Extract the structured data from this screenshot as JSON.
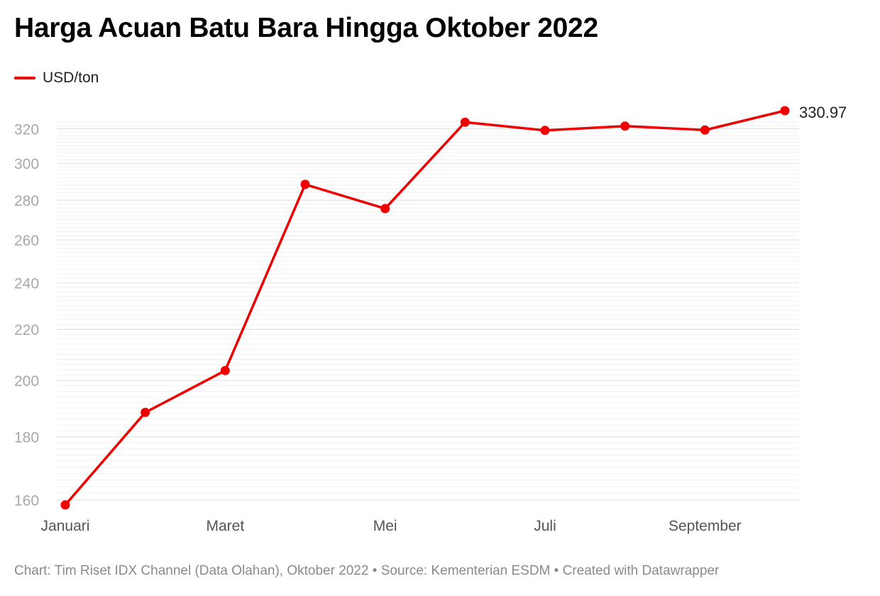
{
  "title": "Harga Acuan Batu Bara Hingga Oktober 2022",
  "colors": {
    "line": "#ee0000",
    "grid": "#e3e3e3",
    "tick_text": "#a8a8a8",
    "axis_text": "#555555"
  },
  "footer": "Chart: Tim Riset IDX Channel (Data Olahan), Oktober 2022 • Source: Kementerian ESDM • Created with Datawrapper",
  "chart_data": {
    "type": "line",
    "title": "Harga Acuan Batu Bara Hingga Oktober 2022",
    "xlabel": "",
    "ylabel": "",
    "y_scale": "log",
    "ylim": [
      158,
      330.97
    ],
    "y_ticks": [
      160,
      180,
      200,
      220,
      240,
      260,
      280,
      300,
      320
    ],
    "x_tick_labels": [
      {
        "index": 0,
        "label": "Januari"
      },
      {
        "index": 2,
        "label": "Maret"
      },
      {
        "index": 4,
        "label": "Mei"
      },
      {
        "index": 6,
        "label": "Juli"
      },
      {
        "index": 8,
        "label": "September"
      }
    ],
    "legend": "top-left",
    "grid": true,
    "series": [
      {
        "name": "USD/ton",
        "values": [
          158.5,
          188.38,
          203.69,
          288.4,
          275.64,
          323.91,
          319.0,
          321.59,
          319.22,
          330.97
        ]
      }
    ],
    "last_value_label": "330.97"
  }
}
